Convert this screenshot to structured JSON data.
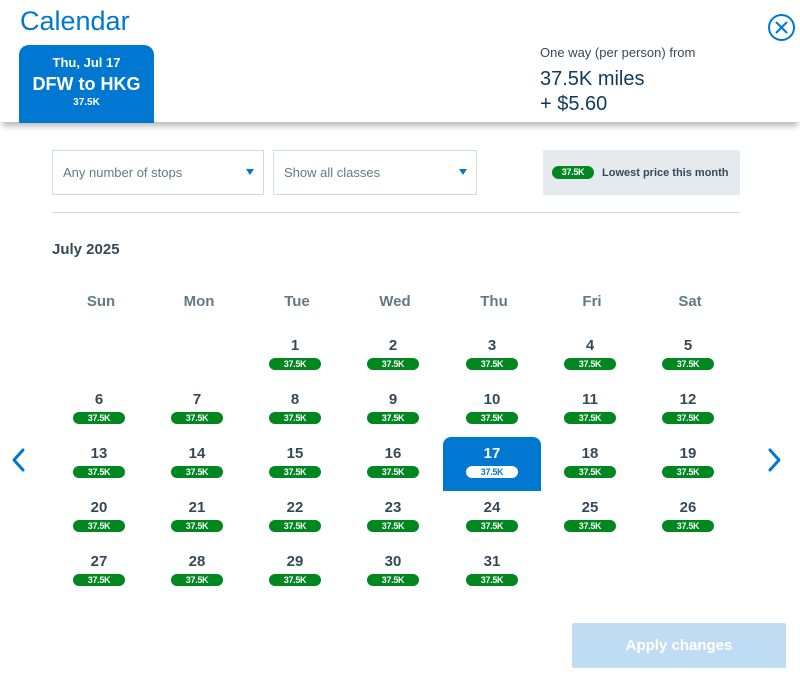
{
  "title": "Calendar",
  "icons": {
    "close": "close-icon",
    "prev": "chevron-left-icon",
    "next": "chevron-right-icon"
  },
  "colors": {
    "brand_blue": "#0078d2",
    "price_green": "#00871f",
    "disabled_button": "#bfdcf3"
  },
  "trip_tab": {
    "date": "Thu, Jul 17",
    "route": "DFW to HKG",
    "price": "37.5K"
  },
  "price_summary": {
    "caption": "One way (per person) from",
    "miles": "37.5K miles",
    "cash": "+ $5.60"
  },
  "filters": {
    "stops": {
      "selected": "Any number of stops"
    },
    "classes": {
      "selected": "Show all classes"
    }
  },
  "legend": {
    "pill": "37.5K",
    "label": "Lowest price this month"
  },
  "month": "July 2025",
  "weekdays": [
    "Sun",
    "Mon",
    "Tue",
    "Wed",
    "Thu",
    "Fri",
    "Sat"
  ],
  "selected_day": 17,
  "first_weekday_index": 2,
  "days": [
    {
      "day": "1",
      "price": "37.5K"
    },
    {
      "day": "2",
      "price": "37.5K"
    },
    {
      "day": "3",
      "price": "37.5K"
    },
    {
      "day": "4",
      "price": "37.5K"
    },
    {
      "day": "5",
      "price": "37.5K"
    },
    {
      "day": "6",
      "price": "37.5K"
    },
    {
      "day": "7",
      "price": "37.5K"
    },
    {
      "day": "8",
      "price": "37.5K"
    },
    {
      "day": "9",
      "price": "37.5K"
    },
    {
      "day": "10",
      "price": "37.5K"
    },
    {
      "day": "11",
      "price": "37.5K"
    },
    {
      "day": "12",
      "price": "37.5K"
    },
    {
      "day": "13",
      "price": "37.5K"
    },
    {
      "day": "14",
      "price": "37.5K"
    },
    {
      "day": "15",
      "price": "37.5K"
    },
    {
      "day": "16",
      "price": "37.5K"
    },
    {
      "day": "17",
      "price": "37.5K"
    },
    {
      "day": "18",
      "price": "37.5K"
    },
    {
      "day": "19",
      "price": "37.5K"
    },
    {
      "day": "20",
      "price": "37.5K"
    },
    {
      "day": "21",
      "price": "37.5K"
    },
    {
      "day": "22",
      "price": "37.5K"
    },
    {
      "day": "23",
      "price": "37.5K"
    },
    {
      "day": "24",
      "price": "37.5K"
    },
    {
      "day": "25",
      "price": "37.5K"
    },
    {
      "day": "26",
      "price": "37.5K"
    },
    {
      "day": "27",
      "price": "37.5K"
    },
    {
      "day": "28",
      "price": "37.5K"
    },
    {
      "day": "29",
      "price": "37.5K"
    },
    {
      "day": "30",
      "price": "37.5K"
    },
    {
      "day": "31",
      "price": "37.5K"
    }
  ],
  "apply_button": {
    "label": "Apply changes",
    "enabled": false
  }
}
